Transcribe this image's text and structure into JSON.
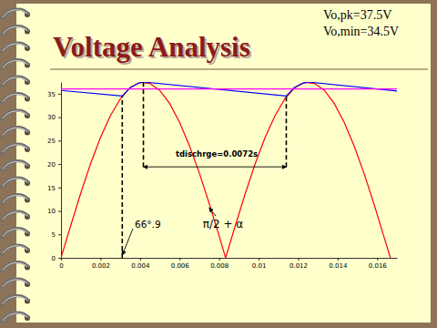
{
  "chart_data": {
    "type": "line",
    "title": "Voltage Analysis",
    "subtitle": [
      "Vo,pk=37.5V",
      "Vo,min=34.5V"
    ],
    "xlim": [
      0,
      0.017
    ],
    "ylim": [
      0,
      37.5
    ],
    "xticks": [
      0,
      0.002,
      0.004,
      0.006,
      0.008,
      0.01,
      0.012,
      0.014,
      0.016
    ],
    "yticks": [
      0,
      5,
      10,
      15,
      20,
      25,
      30,
      35
    ],
    "grid": false,
    "series": [
      {
        "color": "#ff0000",
        "x": [
          0,
          0.0005,
          0.001,
          0.0015,
          0.002,
          0.0025,
          0.003,
          0.0035,
          0.004,
          0.0045,
          0.005,
          0.0055,
          0.006,
          0.0065,
          0.007,
          0.0075,
          0.008,
          0.00833,
          0.00883,
          0.00933,
          0.00983,
          0.01033,
          0.01083,
          0.01133,
          0.01183,
          0.01233,
          0.01283,
          0.01333,
          0.01383,
          0.01433,
          0.01483,
          0.01533,
          0.01583,
          0.01633,
          0.01667
        ],
        "values": [
          0,
          7.0,
          13.8,
          20.1,
          25.7,
          30.3,
          33.9,
          36.3,
          37.4,
          37.2,
          35.7,
          32.9,
          28.9,
          23.9,
          18.1,
          11.6,
          4.7,
          0,
          7.0,
          13.8,
          20.1,
          25.7,
          30.3,
          33.9,
          36.3,
          37.4,
          37.2,
          35.7,
          32.9,
          28.9,
          23.9,
          18.1,
          11.6,
          4.7,
          0
        ]
      },
      {
        "color": "#0000ff",
        "x": [
          0,
          0.0031,
          0.0035,
          0.0039,
          0.00417,
          0.0114,
          0.0118,
          0.0122,
          0.0125,
          0.017
        ],
        "values": [
          35.7,
          34.5,
          36.3,
          37.2,
          37.5,
          34.5,
          36.3,
          37.2,
          37.5,
          35.6
        ]
      },
      {
        "color": "#ff00ff",
        "x": [
          0,
          0.017
        ],
        "values": [
          36,
          36
        ]
      }
    ],
    "vlines": [
      {
        "x": 0.0031,
        "y": [
          0,
          34.5
        ]
      },
      {
        "x": 0.00417,
        "y": [
          19.4,
          37.5
        ]
      },
      {
        "x": 0.0114,
        "y": [
          19.4,
          34.5
        ]
      }
    ],
    "annotations": [
      {
        "text": "66°.9",
        "x": 0.00373,
        "y": 6.4,
        "arrow_to": [
          0.0031,
          0.6
        ]
      },
      {
        "text": "tdischrge=0.0072s",
        "x": 0.00788,
        "y": 21.6,
        "span_x": [
          0.00417,
          0.0114
        ],
        "span_y": 19.4
      },
      {
        "text": "π/2 + α",
        "x": 0.0082,
        "y": 6.4,
        "arrow_to": [
          0.0075,
          10.7
        ]
      }
    ]
  }
}
